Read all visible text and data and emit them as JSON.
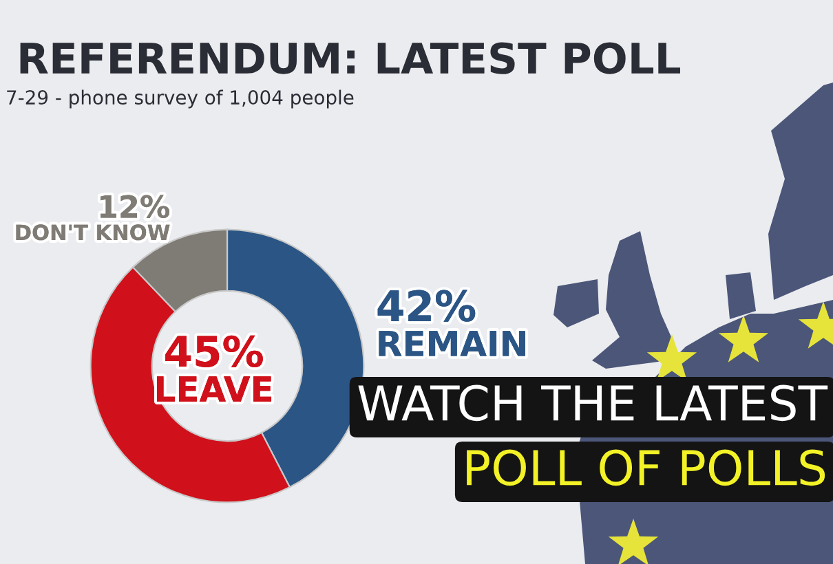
{
  "chart_data": {
    "type": "donut",
    "title": "REFERENDUM: LATEST POLL",
    "subtitle": "7-29 - phone survey of 1,004 people",
    "categories": [
      "REMAIN",
      "LEAVE",
      "DON'T KNOW"
    ],
    "values": [
      42,
      45,
      12
    ],
    "colors": [
      "#2b5585",
      "#d0101a",
      "#7f7b75"
    ],
    "value_labels": [
      "42%",
      "45%",
      "12%"
    ],
    "annotations": [
      "WATCH THE LATEST",
      "POLL OF POLLS"
    ]
  }
}
